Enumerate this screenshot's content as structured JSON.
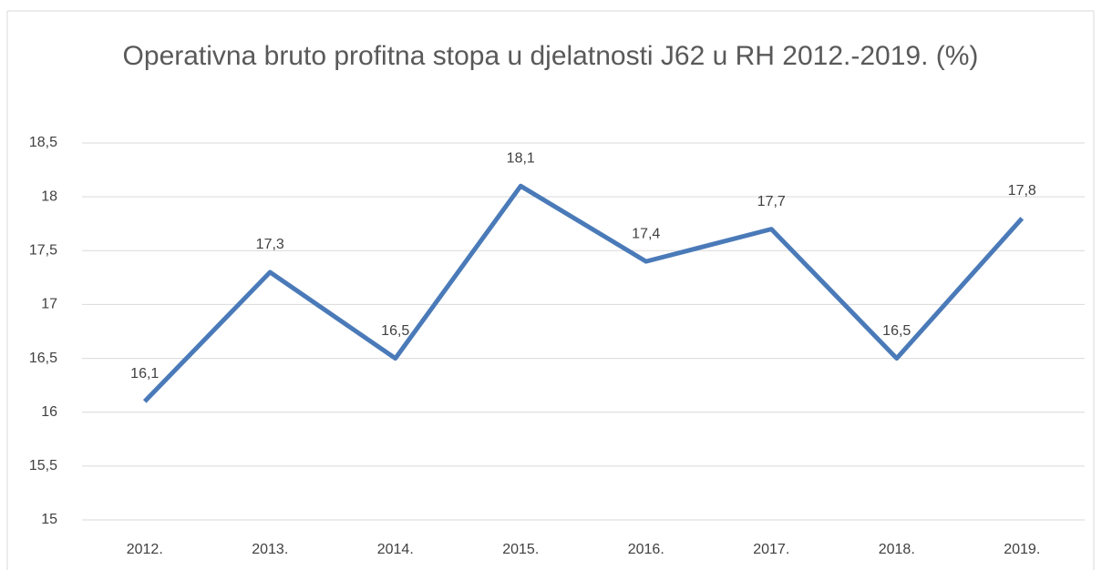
{
  "chart_data": {
    "type": "line",
    "title": "Operativna bruto profitna stopa u djelatnosti J62 u RH 2012.-2019. (%)",
    "categories": [
      "2012.",
      "2013.",
      "2014.",
      "2015.",
      "2016.",
      "2017.",
      "2018.",
      "2019."
    ],
    "values": [
      16.1,
      17.3,
      16.5,
      18.1,
      17.4,
      17.7,
      16.5,
      17.8
    ],
    "value_labels": [
      "16,1",
      "17,3",
      "16,5",
      "18,1",
      "17,4",
      "17,7",
      "16,5",
      "17,8"
    ],
    "color": "#4a7ab8",
    "ylim": [
      15,
      18.5
    ],
    "yticks": [
      15,
      {
        "value": 15.5,
        "label": "15,5"
      },
      16,
      {
        "value": 16.5,
        "label": "16,5"
      },
      17,
      {
        "value": 17.5,
        "label": "17,5"
      },
      18,
      {
        "value": 18.5,
        "label": "18,5"
      }
    ],
    "grid": true
  }
}
